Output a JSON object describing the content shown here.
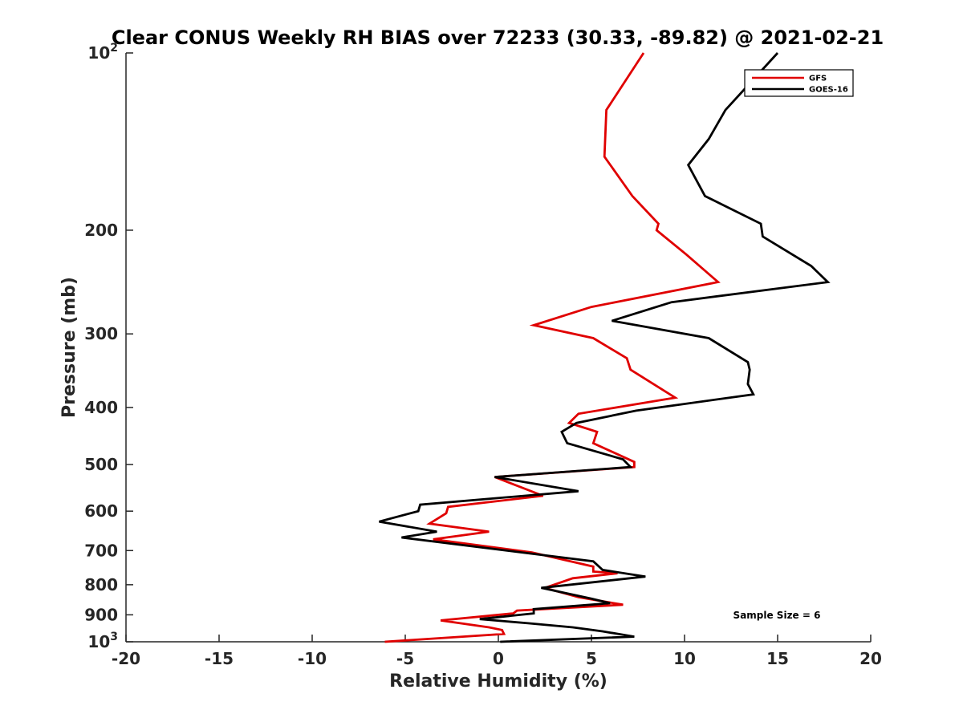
{
  "chart_data": {
    "type": "line",
    "title": "Clear CONUS Weekly RH BIAS over 72233 (30.33, -89.82) @ 2021-02-21",
    "xlabel": "Relative Humidity (%)",
    "ylabel": "Pressure (mb)",
    "xlim": [
      -20,
      20
    ],
    "ylim": [
      100,
      1000
    ],
    "yscale": "log",
    "y_reversed": true,
    "xticks": [
      -20,
      -15,
      -10,
      -5,
      0,
      5,
      10,
      15,
      20
    ],
    "xtick_labels": [
      "-20",
      "-15",
      "-10",
      "-5",
      "0",
      "5",
      "10",
      "15",
      "20"
    ],
    "yticks": [
      100,
      200,
      300,
      400,
      500,
      600,
      700,
      800,
      900,
      1000
    ],
    "ytick_labels": [
      {
        "base": "10",
        "sup": "2"
      },
      {
        "base": "200"
      },
      {
        "base": "300"
      },
      {
        "base": "400"
      },
      {
        "base": "500"
      },
      {
        "base": "600"
      },
      {
        "base": "700"
      },
      {
        "base": "800"
      },
      {
        "base": "900"
      },
      {
        "base": "10",
        "sup": "3"
      }
    ],
    "legend_position": "top-right",
    "annotation": "Sample Size = 6",
    "series": [
      {
        "name": "GFS",
        "color": "#e00000",
        "points": [
          [
            7.8,
            100
          ],
          [
            5.8,
            125
          ],
          [
            5.7,
            150
          ],
          [
            7.2,
            175
          ],
          [
            8.6,
            195
          ],
          [
            8.5,
            200
          ],
          [
            10.1,
            220
          ],
          [
            11.8,
            245
          ],
          [
            5.0,
            270
          ],
          [
            1.9,
            290
          ],
          [
            5.1,
            305
          ],
          [
            6.9,
            330
          ],
          [
            7.1,
            345
          ],
          [
            9.5,
            385
          ],
          [
            4.3,
            410
          ],
          [
            3.8,
            425
          ],
          [
            5.3,
            440
          ],
          [
            5.1,
            460
          ],
          [
            7.3,
            495
          ],
          [
            7.3,
            505
          ],
          [
            -0.2,
            525
          ],
          [
            2.4,
            565
          ],
          [
            -2.7,
            590
          ],
          [
            -2.8,
            605
          ],
          [
            -3.7,
            630
          ],
          [
            -0.5,
            650
          ],
          [
            -3.5,
            670
          ],
          [
            1.8,
            705
          ],
          [
            5.1,
            745
          ],
          [
            5.1,
            760
          ],
          [
            6.4,
            765
          ],
          [
            4.0,
            780
          ],
          [
            2.5,
            810
          ],
          [
            4.3,
            840
          ],
          [
            6.7,
            865
          ],
          [
            1.0,
            885
          ],
          [
            0.8,
            895
          ],
          [
            -3.1,
            920
          ],
          [
            -0.5,
            945
          ],
          [
            0.2,
            955
          ],
          [
            0.3,
            970
          ],
          [
            -6.1,
            1000
          ]
        ]
      },
      {
        "name": "GOES-16",
        "color": "#000000",
        "points": [
          [
            15.0,
            100
          ],
          [
            12.2,
            125
          ],
          [
            11.3,
            140
          ],
          [
            10.2,
            155
          ],
          [
            11.1,
            175
          ],
          [
            14.1,
            195
          ],
          [
            14.2,
            205
          ],
          [
            16.8,
            230
          ],
          [
            17.7,
            245
          ],
          [
            9.3,
            265
          ],
          [
            6.1,
            285
          ],
          [
            11.3,
            305
          ],
          [
            13.4,
            335
          ],
          [
            13.5,
            345
          ],
          [
            13.4,
            365
          ],
          [
            13.7,
            380
          ],
          [
            7.4,
            405
          ],
          [
            4.2,
            425
          ],
          [
            3.4,
            440
          ],
          [
            3.7,
            460
          ],
          [
            6.7,
            490
          ],
          [
            7.1,
            505
          ],
          [
            -0.2,
            525
          ],
          [
            4.3,
            555
          ],
          [
            -4.2,
            585
          ],
          [
            -4.3,
            600
          ],
          [
            -6.4,
            625
          ],
          [
            -3.3,
            650
          ],
          [
            -5.2,
            665
          ],
          [
            5.1,
            730
          ],
          [
            5.6,
            755
          ],
          [
            7.9,
            775
          ],
          [
            2.3,
            810
          ],
          [
            5.0,
            845
          ],
          [
            6.0,
            860
          ],
          [
            1.9,
            880
          ],
          [
            1.9,
            895
          ],
          [
            -1.0,
            915
          ],
          [
            1.6,
            930
          ],
          [
            4.0,
            945
          ],
          [
            5.6,
            960
          ],
          [
            7.3,
            980
          ],
          [
            0.1,
            1000
          ]
        ]
      }
    ]
  }
}
